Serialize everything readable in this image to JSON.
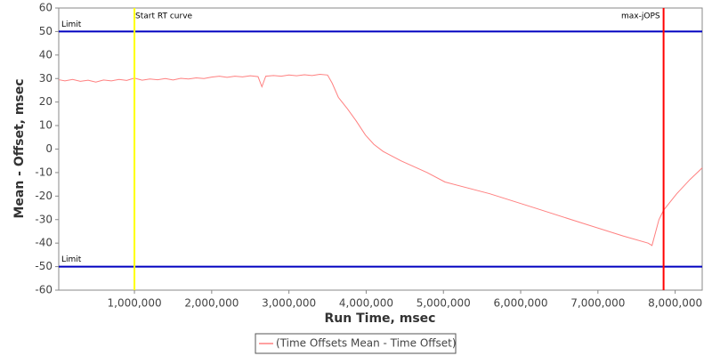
{
  "chart_data": {
    "type": "line",
    "x_label": "Run Time, msec",
    "y_label": "Mean - Offset, msec",
    "x": [
      20000,
      100000,
      200000,
      300000,
      400000,
      500000,
      600000,
      700000,
      800000,
      900000,
      1000000,
      1100000,
      1200000,
      1300000,
      1400000,
      1500000,
      1600000,
      1700000,
      1800000,
      1900000,
      2000000,
      2100000,
      2200000,
      2300000,
      2400000,
      2500000,
      2600000,
      2650000,
      2700000,
      2800000,
      2900000,
      3000000,
      3100000,
      3200000,
      3300000,
      3400000,
      3500000,
      3560000,
      3640000,
      3760000,
      3870000,
      3990000,
      4100000,
      4220000,
      4450000,
      4790000,
      5020000,
      5600000,
      6180000,
      6750000,
      7330000,
      7650000,
      7700000,
      7790000,
      7850000,
      8020000,
      8190000,
      8350000
    ],
    "series": [
      {
        "name": "(Time Offsets Mean - Time Offset)",
        "color": "#ff8080",
        "values": [
          29.5,
          29,
          29.6,
          28.8,
          29.3,
          28.5,
          29.4,
          29,
          29.6,
          29.2,
          30.2,
          29.3,
          29.8,
          29.5,
          30,
          29.4,
          30.1,
          29.8,
          30.3,
          30,
          30.6,
          31,
          30.5,
          31,
          30.7,
          31.2,
          30.8,
          26.5,
          31,
          31.3,
          31,
          31.5,
          31.2,
          31.6,
          31.3,
          31.8,
          31.5,
          28,
          22,
          17,
          12,
          6,
          2,
          -1,
          -5,
          -10,
          -14,
          -19,
          -25,
          -31,
          -37,
          -40,
          -41,
          -30,
          -26,
          -19,
          -13,
          -8
        ]
      }
    ],
    "xlim": [
      20000,
      8350000
    ],
    "ylim": [
      -60,
      60
    ],
    "xticks": [
      {
        "value": 1000000,
        "label": "1,000,000"
      },
      {
        "value": 2000000,
        "label": "2,000,000"
      },
      {
        "value": 3000000,
        "label": "3,000,000"
      },
      {
        "value": 4000000,
        "label": "4,000,000"
      },
      {
        "value": 5000000,
        "label": "5,000,000"
      },
      {
        "value": 6000000,
        "label": "6,000,000"
      },
      {
        "value": 7000000,
        "label": "7,000,000"
      },
      {
        "value": 8000000,
        "label": "8,000,000"
      }
    ],
    "yticks": [
      -60,
      -50,
      -40,
      -30,
      -20,
      -10,
      0,
      10,
      20,
      30,
      40,
      50,
      60
    ],
    "vertical_markers": [
      {
        "value": 1000000,
        "label": "Start RT curve",
        "color": "#ffff00"
      },
      {
        "value": 7850000,
        "label": "max-jOPS",
        "color": "#ff0000"
      }
    ],
    "horizontal_markers": [
      {
        "value": 50,
        "label": "Limit",
        "color": "#0000c0"
      },
      {
        "value": -50,
        "label": "Limit",
        "color": "#0000c0"
      }
    ]
  }
}
